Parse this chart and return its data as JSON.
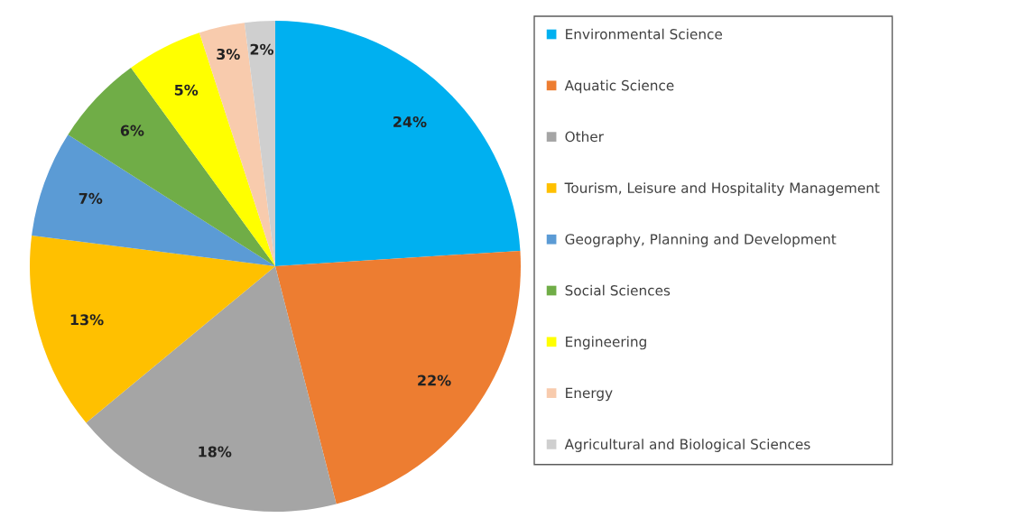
{
  "chart_data": {
    "type": "pie",
    "categories": [
      "Environmental Science",
      "Aquatic Science",
      "Other",
      "Tourism, Leisure and Hospitality Management",
      "Geography, Planning and Development",
      "Social Sciences",
      "Engineering",
      "Energy",
      "Agricultural and Biological Sciences"
    ],
    "values": [
      24,
      22,
      18,
      13,
      7,
      6,
      5,
      3,
      2
    ],
    "value_labels": [
      "24%",
      "22%",
      "18%",
      "13%",
      "7%",
      "6%",
      "5%",
      "3%",
      "2%"
    ],
    "colors": [
      "#00b0f0",
      "#ed7d31",
      "#a5a5a5",
      "#ffc000",
      "#5b9bd5",
      "#70ad47",
      "#ffff00",
      "#f8cbad",
      "#cfcfcf"
    ],
    "legend": "right"
  }
}
